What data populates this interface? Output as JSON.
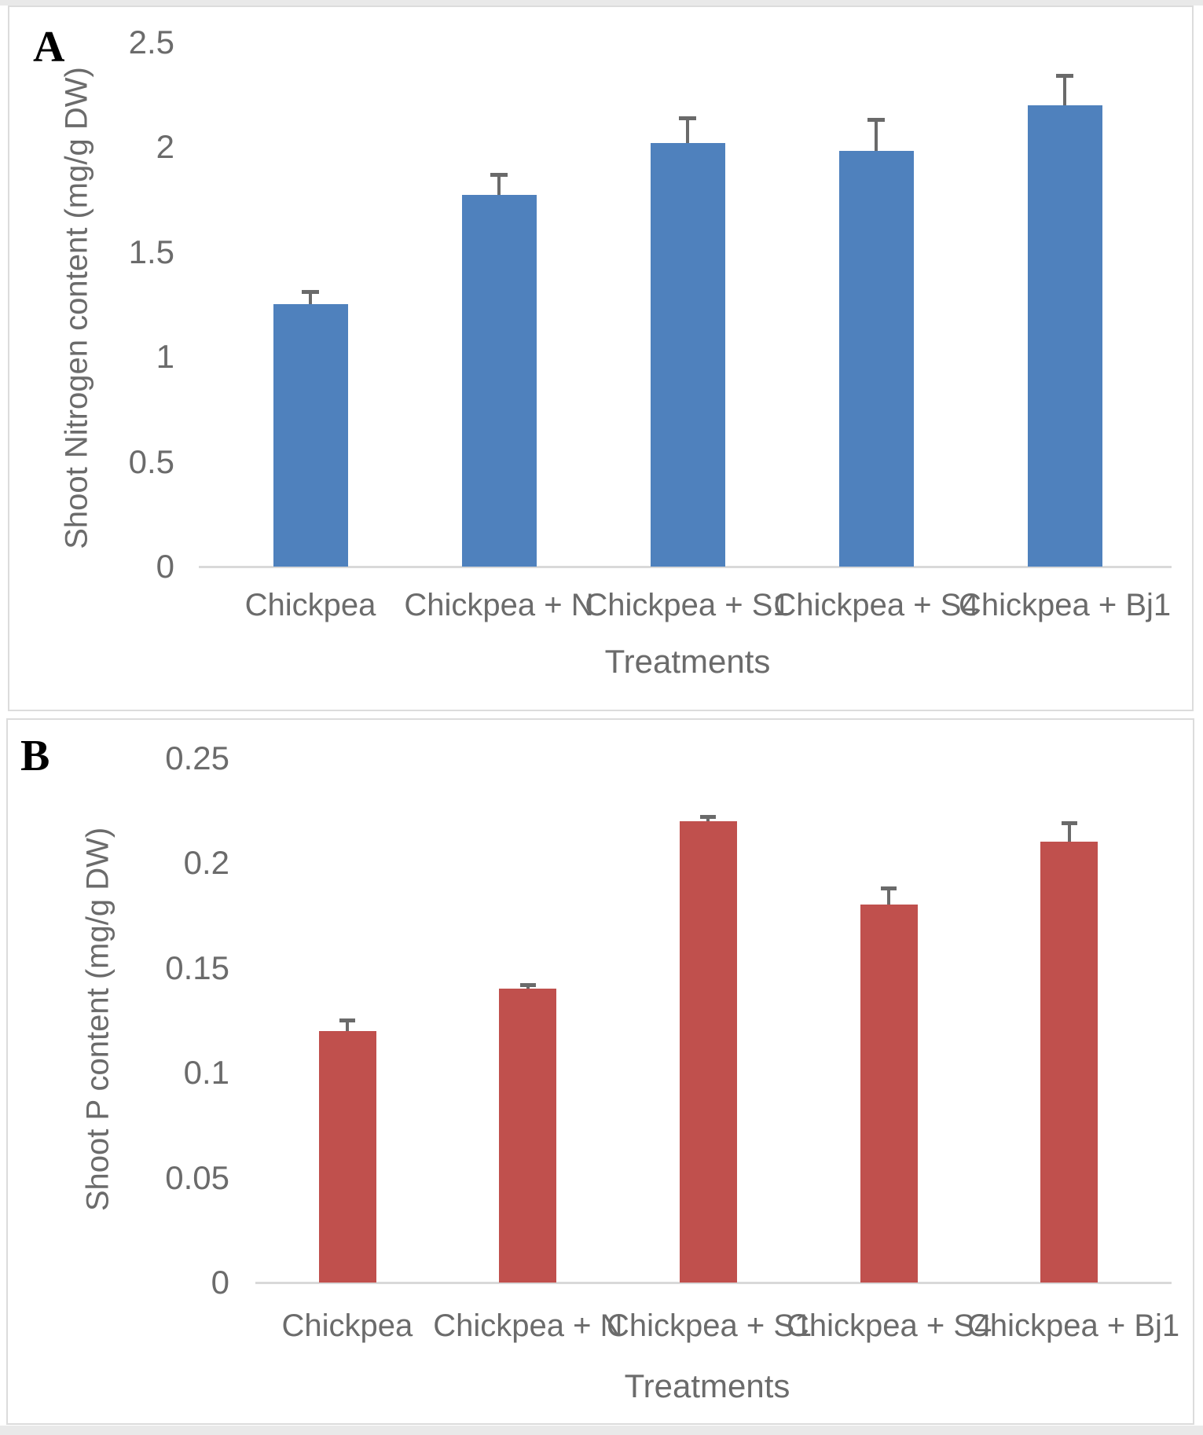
{
  "figure": {
    "panel_a_letter": "A",
    "panel_b_letter": "B",
    "background": "#ffffff",
    "frame_color": "#e9e9e9",
    "panel_border_color": "#dcdcdc"
  },
  "chart_data": [
    {
      "type": "bar",
      "panel": "A",
      "categories": [
        "Chickpea",
        "Chickpea + N",
        "Chickpea + S1",
        "Chickpea + S4",
        "Chickpea + Bj1"
      ],
      "values": [
        1.25,
        1.77,
        2.02,
        1.98,
        2.2
      ],
      "errors_plus": [
        0.06,
        0.1,
        0.12,
        0.15,
        0.14
      ],
      "xlabel": "Treatments",
      "ylabel": "Shoot Nitrogen content (mg/g DW)",
      "ylim": [
        0,
        2.5
      ],
      "ytick_step": 0.5,
      "ytick_labels": [
        "0",
        "0.5",
        "1",
        "1.5",
        "2",
        "2.5"
      ],
      "bar_color": "#4F81BD",
      "error_bar_color": "#6A6A6A",
      "axis_line_color": "#D9D9D9",
      "grid": false,
      "legend": "none"
    },
    {
      "type": "bar",
      "panel": "B",
      "categories": [
        "Chickpea",
        "Chickpea + N",
        "Chickpea + S1",
        "Chickpea + S4",
        "Chickpea + Bj1"
      ],
      "values": [
        0.12,
        0.14,
        0.22,
        0.18,
        0.21
      ],
      "errors_plus": [
        0.005,
        0.002,
        0.002,
        0.008,
        0.009
      ],
      "xlabel": "Treatments",
      "ylabel": "Shoot P content (mg/g DW)",
      "ylim": [
        0,
        0.25
      ],
      "ytick_step": 0.05,
      "ytick_labels": [
        "0",
        "0.05",
        "0.1",
        "0.15",
        "0.2",
        "0.25"
      ],
      "bar_color": "#C0504D",
      "error_bar_color": "#6A6A6A",
      "axis_line_color": "#D9D9D9",
      "grid": false,
      "legend": "none"
    }
  ]
}
